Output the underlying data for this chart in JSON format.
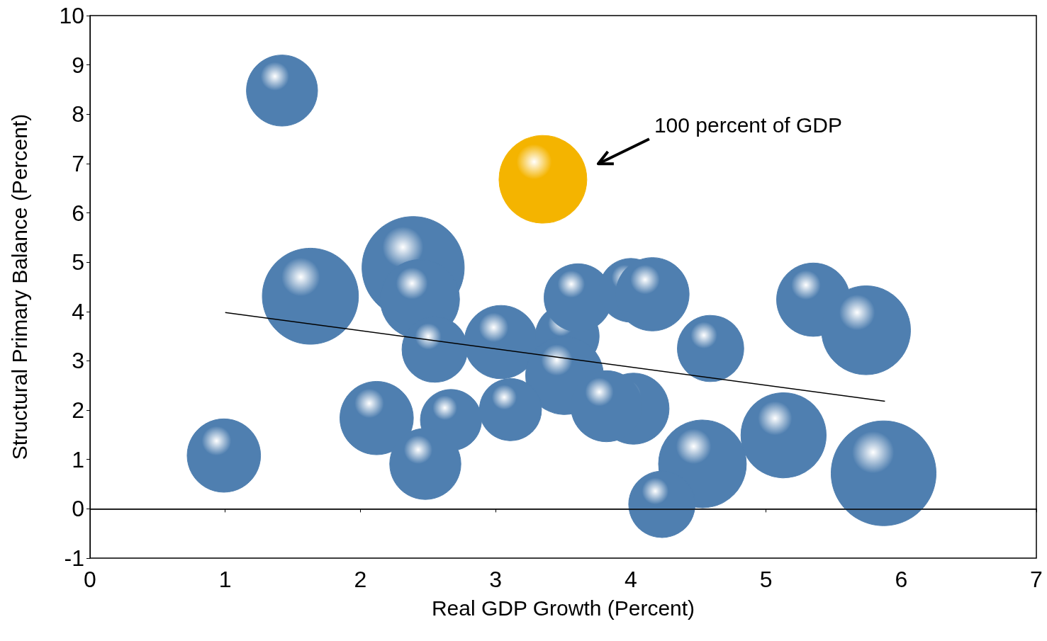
{
  "chart_data": {
    "type": "bubble",
    "xlabel": "Real GDP Growth (Percent)",
    "ylabel": "Structural Primary Balance (Percent)",
    "xlim": [
      0,
      7
    ],
    "xticks": [
      0,
      1,
      2,
      3,
      4,
      5,
      6,
      7
    ],
    "ylim": [
      -1,
      10
    ],
    "yticks": [
      -1,
      0,
      1,
      2,
      3,
      4,
      5,
      6,
      7,
      8,
      9,
      10
    ],
    "grid": false,
    "marker": "circle",
    "series": [
      {
        "color": "#4f7fb0",
        "x": [
          1.42,
          1.63,
          2.39,
          2.44,
          2.55,
          3.04,
          3.53,
          3.61,
          4.0,
          4.16,
          4.59,
          5.35,
          5.74,
          3.51,
          4.02,
          3.82,
          3.11,
          2.67,
          2.12,
          2.48,
          0.99,
          4.53,
          4.23,
          5.13,
          5.87
        ],
        "values": [
          8.48,
          4.31,
          4.89,
          4.25,
          3.23,
          3.38,
          3.5,
          4.28,
          4.43,
          4.35,
          3.25,
          4.24,
          3.62,
          2.7,
          2.03,
          2.08,
          2.01,
          1.8,
          1.84,
          0.91,
          1.08,
          0.91,
          0.09,
          1.49,
          0.72
        ],
        "sizes": [
          0.46,
          0.84,
          0.95,
          0.57,
          0.39,
          0.49,
          0.37,
          0.42,
          0.37,
          0.49,
          0.4,
          0.49,
          0.72,
          0.55,
          0.46,
          0.46,
          0.35,
          0.34,
          0.49,
          0.46,
          0.49,
          0.7,
          0.4,
          0.66,
          1
        ]
      },
      {
        "color": "#f4b400",
        "x": [
          3.35
        ],
        "values": [
          6.68
        ],
        "sizes": [
          0.7
        ]
      },
      {
        "type": "line",
        "marker": "none",
        "color": "#000000",
        "x": [
          1.0,
          5.88
        ],
        "values": [
          3.98,
          2.18
        ]
      }
    ],
    "ref_lines": [
      {
        "axis": "y",
        "value": 0,
        "color": "#000000"
      }
    ],
    "annotations": [
      "100 percent of GDP"
    ]
  }
}
